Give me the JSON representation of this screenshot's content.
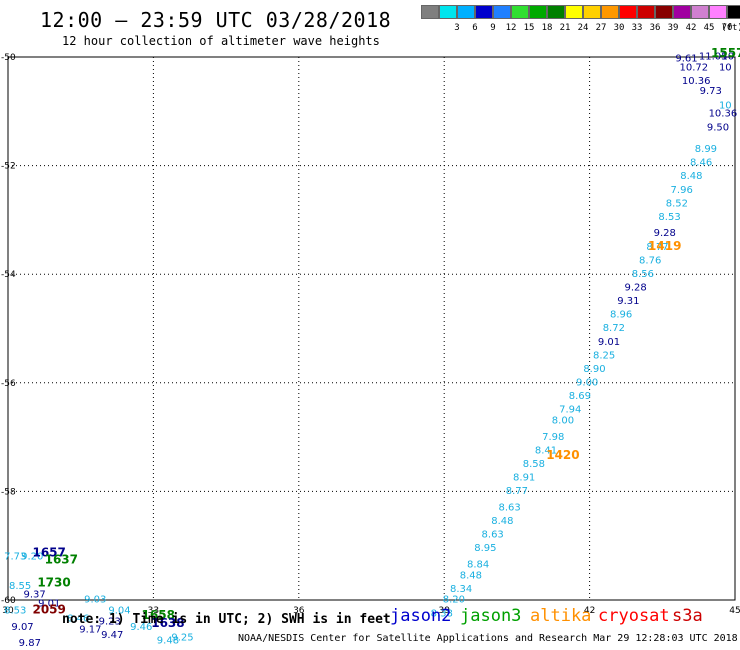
{
  "header": {
    "title": "12:00 – 23:59 UTC 03/28/2018",
    "subtitle": "12 hour collection of altimeter wave heights"
  },
  "colorbar": {
    "unit": "(ft)",
    "bins": [
      {
        "label": "",
        "color": "#7f7f7f"
      },
      {
        "label": "3",
        "color": "#00e5ee"
      },
      {
        "label": "6",
        "color": "#00b0ff"
      },
      {
        "label": "9",
        "color": "#0000cd"
      },
      {
        "label": "12",
        "color": "#2080ff"
      },
      {
        "label": "15",
        "color": "#30e030"
      },
      {
        "label": "18",
        "color": "#00aa00"
      },
      {
        "label": "21",
        "color": "#008000"
      },
      {
        "label": "24",
        "color": "#ffff00"
      },
      {
        "label": "27",
        "color": "#ffd000"
      },
      {
        "label": "30",
        "color": "#ff9800"
      },
      {
        "label": "33",
        "color": "#ff0000"
      },
      {
        "label": "36",
        "color": "#cc0000"
      },
      {
        "label": "39",
        "color": "#880000"
      },
      {
        "label": "42",
        "color": "#a000a0"
      },
      {
        "label": "45",
        "color": "#d080d0"
      },
      {
        "label": "70",
        "color": "#ff80ff"
      },
      {
        "label": "",
        "color": "#000000"
      }
    ]
  },
  "note": "note: 1) Time is in UTC; 2) SWH is in feet",
  "satellites": [
    {
      "name": "jason2",
      "color": "#0000cd"
    },
    {
      "name": "jason3",
      "color": "#00a000"
    },
    {
      "name": "altika",
      "color": "#ff9000"
    },
    {
      "name": "cryosat",
      "color": "#ff0000"
    },
    {
      "name": "s3a",
      "color": "#cc0000"
    }
  ],
  "footer": "NOAA/NESDIS Center for Satellite Applications and Research   Mar 29 12:28:03 UTC 2018",
  "chart_data": {
    "type": "scatter",
    "title": "12:00 – 23:59 UTC 03/28/2018",
    "xlim": [
      30,
      45
    ],
    "ylim": [
      -60,
      -50
    ],
    "x_ticks": [
      30,
      33,
      36,
      39,
      42,
      45
    ],
    "y_ticks": [
      -50,
      -52,
      -54,
      -56,
      -58,
      -60
    ],
    "grid": true,
    "legend_position": "bottom",
    "colors": {
      "light": "#1ab0e0",
      "dark": "#00008b",
      "green": "#008000",
      "orange": "#ff9000",
      "maroon": "#800000"
    },
    "points": [
      {
        "x": 44.0,
        "y": -50.08,
        "label": "9.61",
        "c": "dark"
      },
      {
        "x": 44.55,
        "y": -50.05,
        "label": "11.05",
        "c": "dark"
      },
      {
        "x": 44.85,
        "y": -50.05,
        "label": "10",
        "c": "dark"
      },
      {
        "x": 44.15,
        "y": -50.25,
        "label": "10.72",
        "c": "dark"
      },
      {
        "x": 44.8,
        "y": -50.25,
        "label": "10",
        "c": "dark"
      },
      {
        "x": 44.2,
        "y": -50.5,
        "label": "10.36",
        "c": "dark"
      },
      {
        "x": 44.5,
        "y": -50.68,
        "label": "9.73",
        "c": "dark"
      },
      {
        "x": 44.8,
        "y": -50.95,
        "label": "10",
        "c": "light"
      },
      {
        "x": 44.75,
        "y": -51.1,
        "label": "10.36",
        "c": "dark"
      },
      {
        "x": 44.65,
        "y": -51.35,
        "label": "9.50",
        "c": "dark"
      },
      {
        "x": 44.4,
        "y": -51.75,
        "label": "8.99",
        "c": "light"
      },
      {
        "x": 44.3,
        "y": -52.0,
        "label": "8.46",
        "c": "light"
      },
      {
        "x": 44.1,
        "y": -52.25,
        "label": "8.48",
        "c": "light"
      },
      {
        "x": 43.9,
        "y": -52.5,
        "label": "7.96",
        "c": "light"
      },
      {
        "x": 43.8,
        "y": -52.75,
        "label": "8.52",
        "c": "light"
      },
      {
        "x": 43.65,
        "y": -53.0,
        "label": "8.53",
        "c": "light"
      },
      {
        "x": 43.55,
        "y": -53.3,
        "label": "9.28",
        "c": "dark"
      },
      {
        "x": 43.4,
        "y": -53.55,
        "label": "8.77",
        "c": "light"
      },
      {
        "x": 43.25,
        "y": -53.8,
        "label": "8.76",
        "c": "light"
      },
      {
        "x": 43.1,
        "y": -54.05,
        "label": "8.56",
        "c": "light"
      },
      {
        "x": 42.95,
        "y": -54.3,
        "label": "9.28",
        "c": "dark"
      },
      {
        "x": 42.8,
        "y": -54.55,
        "label": "9.31",
        "c": "dark"
      },
      {
        "x": 42.65,
        "y": -54.8,
        "label": "8.96",
        "c": "light"
      },
      {
        "x": 42.5,
        "y": -55.05,
        "label": "8.72",
        "c": "light"
      },
      {
        "x": 42.4,
        "y": -55.3,
        "label": "9.01",
        "c": "dark"
      },
      {
        "x": 42.3,
        "y": -55.55,
        "label": "8.25",
        "c": "light"
      },
      {
        "x": 42.1,
        "y": -55.8,
        "label": "8.90",
        "c": "light"
      },
      {
        "x": 41.95,
        "y": -56.05,
        "label": "9.00",
        "c": "light"
      },
      {
        "x": 41.8,
        "y": -56.3,
        "label": "8.69",
        "c": "light"
      },
      {
        "x": 41.6,
        "y": -56.55,
        "label": "7.94",
        "c": "light"
      },
      {
        "x": 41.45,
        "y": -56.75,
        "label": "8.00",
        "c": "light"
      },
      {
        "x": 41.25,
        "y": -57.05,
        "label": "7.98",
        "c": "light"
      },
      {
        "x": 41.1,
        "y": -57.3,
        "label": "8.41",
        "c": "light"
      },
      {
        "x": 40.85,
        "y": -57.55,
        "label": "8.58",
        "c": "light"
      },
      {
        "x": 40.65,
        "y": -57.8,
        "label": "8.91",
        "c": "light"
      },
      {
        "x": 40.5,
        "y": -58.05,
        "label": "8.77",
        "c": "light"
      },
      {
        "x": 40.35,
        "y": -58.35,
        "label": "8.63",
        "c": "light"
      },
      {
        "x": 40.2,
        "y": -58.6,
        "label": "8.48",
        "c": "light"
      },
      {
        "x": 40.0,
        "y": -58.85,
        "label": "8.63",
        "c": "light"
      },
      {
        "x": 39.85,
        "y": -59.1,
        "label": "8.95",
        "c": "light"
      },
      {
        "x": 39.7,
        "y": -59.4,
        "label": "8.84",
        "c": "light"
      },
      {
        "x": 39.55,
        "y": -59.6,
        "label": "8.48",
        "c": "light"
      },
      {
        "x": 39.35,
        "y": -59.85,
        "label": "8.34",
        "c": "light"
      },
      {
        "x": 39.2,
        "y": -60.05,
        "label": "8.20",
        "c": "light"
      },
      {
        "x": 38.95,
        "y": -60.3,
        "label": "8.38",
        "c": "light"
      },
      {
        "x": 30.15,
        "y": -59.25,
        "label": "7.73",
        "c": "light"
      },
      {
        "x": 30.5,
        "y": -59.25,
        "label": "9.20",
        "c": "light"
      },
      {
        "x": 30.25,
        "y": -59.8,
        "label": "8.55",
        "c": "light"
      },
      {
        "x": 30.55,
        "y": -59.95,
        "label": "9.37",
        "c": "dark"
      },
      {
        "x": 30.85,
        "y": -60.12,
        "label": "9.01",
        "c": "dark"
      },
      {
        "x": 30.15,
        "y": -60.25,
        "label": "8.53",
        "c": "light"
      },
      {
        "x": 31.45,
        "y": -60.4,
        "label": "8.46",
        "c": "light"
      },
      {
        "x": 30.3,
        "y": -60.55,
        "label": "9.07",
        "c": "dark"
      },
      {
        "x": 31.7,
        "y": -60.6,
        "label": "9.17",
        "c": "dark"
      },
      {
        "x": 32.1,
        "y": -60.45,
        "label": "9.23",
        "c": "dark"
      },
      {
        "x": 30.45,
        "y": -60.85,
        "label": "9.87",
        "c": "dark"
      },
      {
        "x": 32.15,
        "y": -60.7,
        "label": "9.47",
        "c": "dark"
      },
      {
        "x": 32.75,
        "y": -60.55,
        "label": "9.46",
        "c": "light"
      },
      {
        "x": 33.6,
        "y": -60.75,
        "label": "9.25",
        "c": "light"
      },
      {
        "x": 33.3,
        "y": -60.8,
        "label": "9.48",
        "c": "light"
      },
      {
        "x": 31.8,
        "y": -60.05,
        "label": "9.03",
        "c": "light"
      },
      {
        "x": 32.3,
        "y": -60.25,
        "label": "9.04",
        "c": "light"
      }
    ],
    "time_labels": [
      {
        "x": 44.85,
        "y": -50.0,
        "label": "1557",
        "c": "green"
      },
      {
        "x": 43.55,
        "y": -53.55,
        "label": "1419",
        "c": "orange"
      },
      {
        "x": 41.45,
        "y": -57.4,
        "label": "1420",
        "c": "orange"
      },
      {
        "x": 30.85,
        "y": -59.2,
        "label": "1657",
        "c": "dark"
      },
      {
        "x": 31.1,
        "y": -59.33,
        "label": "1637",
        "c": "green"
      },
      {
        "x": 30.95,
        "y": -59.75,
        "label": "1730",
        "c": "green"
      },
      {
        "x": 30.85,
        "y": -60.25,
        "label": "2059",
        "c": "maroon"
      },
      {
        "x": 33.1,
        "y": -60.35,
        "label": "1658",
        "c": "green"
      },
      {
        "x": 33.3,
        "y": -60.5,
        "label": "1638",
        "c": "dark"
      }
    ]
  }
}
